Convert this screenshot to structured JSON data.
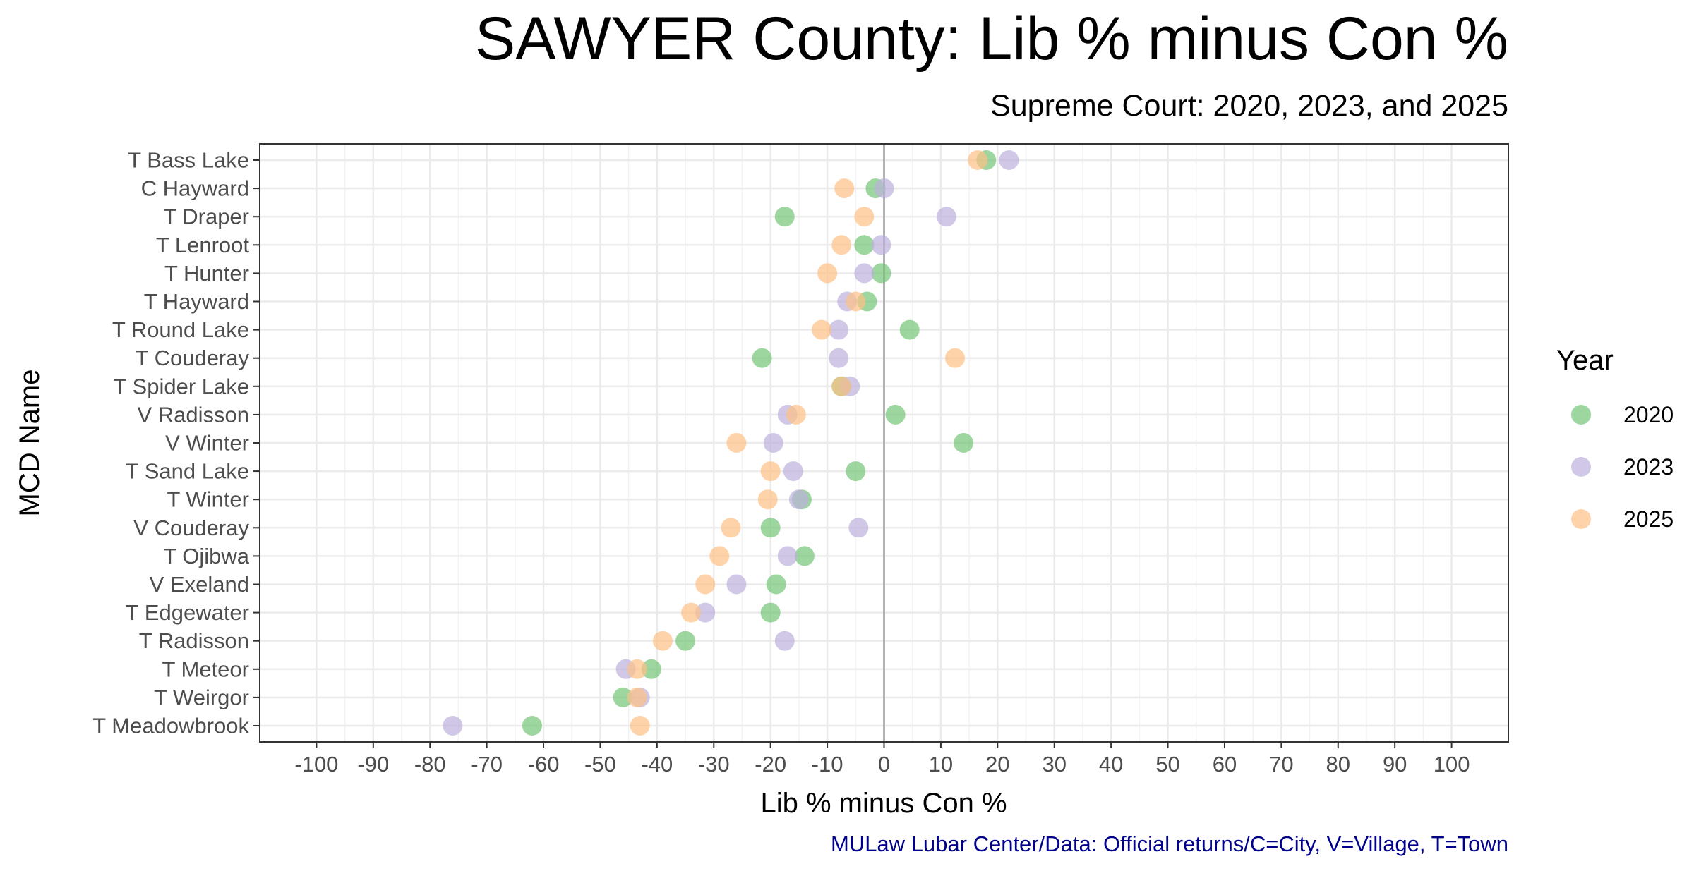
{
  "chart_data": {
    "type": "scatter",
    "title": "SAWYER County: Lib % minus Con %",
    "subtitle": "Supreme Court: 2020, 2023, and 2025",
    "xlabel": "Lib % minus Con %",
    "ylabel": "MCD Name",
    "caption": "MULaw Lubar Center/Data: Official returns/C=City, V=Village, T=Town",
    "xlim": [
      -110,
      110
    ],
    "x_ticks": [
      -100,
      -90,
      -80,
      -70,
      -60,
      -50,
      -40,
      -30,
      -20,
      -10,
      0,
      10,
      20,
      30,
      40,
      50,
      60,
      70,
      80,
      90,
      100
    ],
    "reference_line_x": 0,
    "grid": true,
    "legend": {
      "title": "Year",
      "position": "right"
    },
    "categories": [
      "T Bass Lake",
      "C Hayward",
      "T Draper",
      "T Lenroot",
      "T Hunter",
      "T Hayward",
      "T Round Lake",
      "T Couderay",
      "T Spider Lake",
      "V Radisson",
      "V Winter",
      "T Sand Lake",
      "T Winter",
      "V Couderay",
      "T Ojibwa",
      "V Exeland",
      "T Edgewater",
      "T Radisson",
      "T Meteor",
      "T Weirgor",
      "T Meadowbrook"
    ],
    "series": [
      {
        "name": "2020",
        "color": "#74C476",
        "values": [
          18,
          -1.5,
          -17.5,
          -3.5,
          -0.5,
          -3,
          4.5,
          -21.5,
          -7.5,
          2,
          14,
          -5,
          -14.5,
          -20,
          -14,
          -19,
          -20,
          -35,
          -41,
          -46,
          -62
        ]
      },
      {
        "name": "2023",
        "color": "#BCB1DB",
        "values": [
          22,
          0,
          11,
          -0.5,
          -3.5,
          -6.5,
          -8,
          -8,
          -6,
          -17,
          -19.5,
          -16,
          -15,
          -4.5,
          -17,
          -26,
          -31.5,
          -17.5,
          -45.5,
          -43,
          -76
        ]
      },
      {
        "name": "2025",
        "color": "#FDC086",
        "values": [
          16.5,
          -7,
          -3.5,
          -7.5,
          -10,
          -5,
          -11,
          12.5,
          -7.5,
          -15.5,
          -26,
          -20,
          -20.5,
          -27,
          -29,
          -31.5,
          -34,
          -39,
          -43.5,
          -43.5,
          -43
        ]
      }
    ]
  }
}
